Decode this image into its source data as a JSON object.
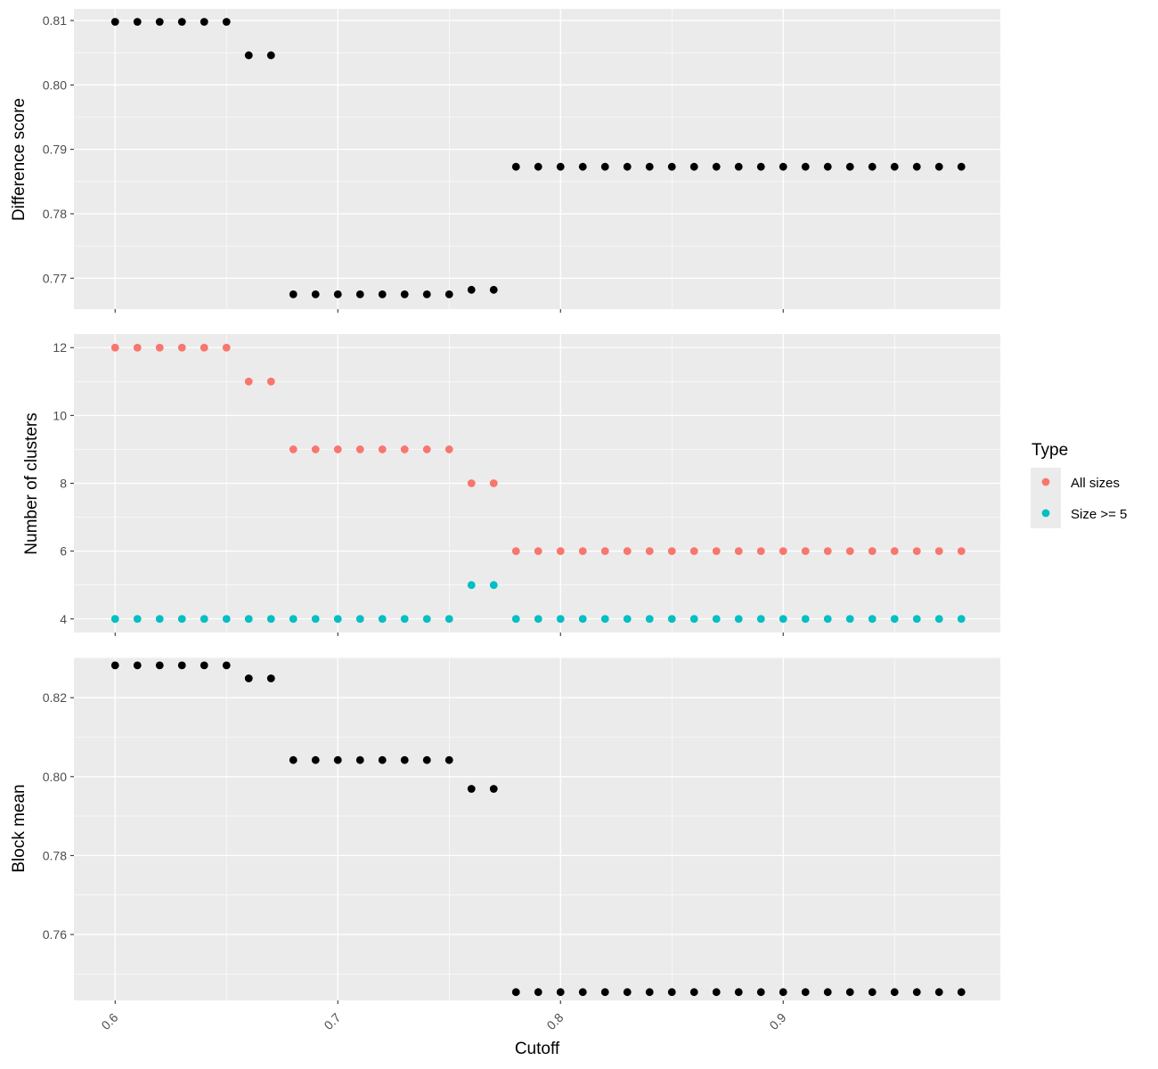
{
  "colors": {
    "panel_bg": "#EBEBEB",
    "grid_major": "#FFFFFF",
    "point_black": "#000000",
    "all_sizes": "#F8766D",
    "size_ge_5": "#00BFC4"
  },
  "chart_data": [
    {
      "type": "scatter",
      "panel": "top",
      "xlabel": "",
      "ylabel": "Difference score",
      "xlim": [
        0.5815,
        0.9975
      ],
      "ylim": [
        0.7652,
        0.8118
      ],
      "xticks": [
        0.6,
        0.7,
        0.8,
        0.9
      ],
      "yticks": [
        0.77,
        0.78,
        0.79,
        0.8,
        0.81
      ],
      "ytick_labels": [
        "0.77",
        "0.78",
        "0.79",
        "0.80",
        "0.81"
      ],
      "x": [
        0.6,
        0.61,
        0.62,
        0.63,
        0.64,
        0.65,
        0.66,
        0.67,
        0.68,
        0.69,
        0.7,
        0.71,
        0.72,
        0.73,
        0.74,
        0.75,
        0.76,
        0.77,
        0.78,
        0.79,
        0.8,
        0.81,
        0.82,
        0.83,
        0.84,
        0.85,
        0.86,
        0.87,
        0.88,
        0.89,
        0.9,
        0.91,
        0.92,
        0.93,
        0.94,
        0.95,
        0.96,
        0.97,
        0.98
      ],
      "y": [
        0.8098,
        0.8098,
        0.8098,
        0.8098,
        0.8098,
        0.8098,
        0.8046,
        0.8046,
        0.7675,
        0.7675,
        0.7675,
        0.7675,
        0.7675,
        0.7675,
        0.7675,
        0.7675,
        0.7682,
        0.7682,
        0.7873,
        0.7873,
        0.7873,
        0.7873,
        0.7873,
        0.7873,
        0.7873,
        0.7873,
        0.7873,
        0.7873,
        0.7873,
        0.7873,
        0.7873,
        0.7873,
        0.7873,
        0.7873,
        0.7873,
        0.7873,
        0.7873,
        0.7873,
        0.7873
      ]
    },
    {
      "type": "scatter",
      "panel": "middle",
      "xlabel": "",
      "ylabel": "Number of clusters",
      "xlim": [
        0.5815,
        0.9975
      ],
      "ylim": [
        3.6,
        12.4
      ],
      "xticks": [
        0.6,
        0.7,
        0.8,
        0.9
      ],
      "yticks": [
        4,
        6,
        8,
        10,
        12
      ],
      "ytick_labels": [
        "4",
        "6",
        "8",
        "10",
        "12"
      ],
      "x": [
        0.6,
        0.61,
        0.62,
        0.63,
        0.64,
        0.65,
        0.66,
        0.67,
        0.68,
        0.69,
        0.7,
        0.71,
        0.72,
        0.73,
        0.74,
        0.75,
        0.76,
        0.77,
        0.78,
        0.79,
        0.8,
        0.81,
        0.82,
        0.83,
        0.84,
        0.85,
        0.86,
        0.87,
        0.88,
        0.89,
        0.9,
        0.91,
        0.92,
        0.93,
        0.94,
        0.95,
        0.96,
        0.97,
        0.98
      ],
      "series": [
        {
          "name": "All sizes",
          "color": "#F8766D",
          "values": [
            12,
            12,
            12,
            12,
            12,
            12,
            11,
            11,
            9,
            9,
            9,
            9,
            9,
            9,
            9,
            9,
            8,
            8,
            6,
            6,
            6,
            6,
            6,
            6,
            6,
            6,
            6,
            6,
            6,
            6,
            6,
            6,
            6,
            6,
            6,
            6,
            6,
            6,
            6
          ]
        },
        {
          "name": "Size >= 5",
          "color": "#00BFC4",
          "values": [
            4,
            4,
            4,
            4,
            4,
            4,
            4,
            4,
            4,
            4,
            4,
            4,
            4,
            4,
            4,
            4,
            5,
            5,
            4,
            4,
            4,
            4,
            4,
            4,
            4,
            4,
            4,
            4,
            4,
            4,
            4,
            4,
            4,
            4,
            4,
            4,
            4,
            4,
            4
          ]
        }
      ]
    },
    {
      "type": "scatter",
      "panel": "bottom",
      "xlabel": "Cutoff",
      "ylabel": "Block mean",
      "xlim": [
        0.5815,
        0.9975
      ],
      "ylim": [
        0.7433,
        0.8302
      ],
      "xticks": [
        0.6,
        0.7,
        0.8,
        0.9
      ],
      "xtick_labels": [
        "0.6",
        "0.7",
        "0.8",
        "0.9"
      ],
      "yticks": [
        0.76,
        0.78,
        0.8,
        0.82
      ],
      "ytick_labels": [
        "0.76",
        "0.78",
        "0.80",
        "0.82"
      ],
      "x": [
        0.6,
        0.61,
        0.62,
        0.63,
        0.64,
        0.65,
        0.66,
        0.67,
        0.68,
        0.69,
        0.7,
        0.71,
        0.72,
        0.73,
        0.74,
        0.75,
        0.76,
        0.77,
        0.78,
        0.79,
        0.8,
        0.81,
        0.82,
        0.83,
        0.84,
        0.85,
        0.86,
        0.87,
        0.88,
        0.89,
        0.9,
        0.91,
        0.92,
        0.93,
        0.94,
        0.95,
        0.96,
        0.97,
        0.98
      ],
      "y": [
        0.8282,
        0.8282,
        0.8282,
        0.8282,
        0.8282,
        0.8282,
        0.8249,
        0.8249,
        0.8042,
        0.8042,
        0.8042,
        0.8042,
        0.8042,
        0.8042,
        0.8042,
        0.8042,
        0.7969,
        0.7969,
        0.7454,
        0.7454,
        0.7454,
        0.7454,
        0.7454,
        0.7454,
        0.7454,
        0.7454,
        0.7454,
        0.7454,
        0.7454,
        0.7454,
        0.7454,
        0.7454,
        0.7454,
        0.7454,
        0.7454,
        0.7454,
        0.7454,
        0.7454,
        0.7454
      ]
    }
  ],
  "legend": {
    "title": "Type",
    "position": "right",
    "items": [
      {
        "label": "All sizes",
        "color": "#F8766D"
      },
      {
        "label": "Size >= 5",
        "color": "#00BFC4"
      }
    ]
  }
}
